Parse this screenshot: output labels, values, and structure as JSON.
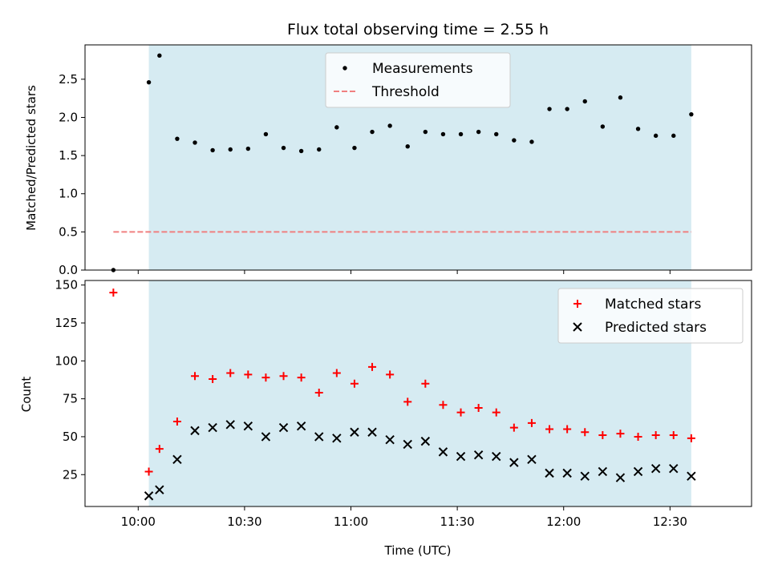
{
  "figure": {
    "title": "Flux total observing time = 2.55 h"
  },
  "colors": {
    "band": "#add8e6",
    "threshold": "#f08080",
    "matched": "#ff0000",
    "predicted": "#000000",
    "measurement": "#000000"
  },
  "chart_data": [
    {
      "type": "scatter",
      "ylabel": "Matched/Predicted stars",
      "xlabel": "",
      "ylim": [
        0,
        2.95
      ],
      "yticks": [
        0.0,
        0.5,
        1.0,
        1.5,
        2.0,
        2.5
      ],
      "ytick_labels": [
        "0.0",
        "0.5",
        "1.0",
        "1.5",
        "2.0",
        "2.5"
      ],
      "xlim": [
        "09:45",
        "12:53"
      ],
      "highlight_span": [
        "10:03",
        "12:36"
      ],
      "legend_position": "top-center",
      "series": [
        {
          "name": "Measurements",
          "marker": "dot",
          "x": [
            "09:53",
            "10:03",
            "10:06",
            "10:11",
            "10:16",
            "10:21",
            "10:26",
            "10:31",
            "10:36",
            "10:41",
            "10:46",
            "10:51",
            "10:56",
            "11:01",
            "11:06",
            "11:11",
            "11:16",
            "11:21",
            "11:26",
            "11:31",
            "11:36",
            "11:41",
            "11:46",
            "11:51",
            "11:56",
            "12:01",
            "12:06",
            "12:11",
            "12:16",
            "12:21",
            "12:26",
            "12:31",
            "12:36"
          ],
          "y": [
            0.0,
            2.46,
            2.81,
            1.72,
            1.67,
            1.57,
            1.58,
            1.59,
            1.78,
            1.6,
            1.56,
            1.58,
            1.87,
            1.6,
            1.81,
            1.89,
            1.62,
            1.81,
            1.78,
            1.78,
            1.81,
            1.78,
            1.7,
            1.68,
            2.11,
            2.11,
            2.21,
            1.88,
            2.26,
            1.85,
            1.76,
            1.76,
            2.04
          ]
        },
        {
          "name": "Threshold",
          "marker": "dashed-line",
          "x": [
            "09:53",
            "12:36"
          ],
          "y": [
            0.5,
            0.5
          ]
        }
      ]
    },
    {
      "type": "scatter",
      "ylabel": "Count",
      "xlabel": "Time (UTC)",
      "ylim": [
        4,
        153
      ],
      "yticks": [
        25,
        50,
        75,
        100,
        125,
        150
      ],
      "ytick_labels": [
        "25",
        "50",
        "75",
        "100",
        "125",
        "150"
      ],
      "xticks": [
        "10:00",
        "10:30",
        "11:00",
        "11:30",
        "12:00",
        "12:30"
      ],
      "xtick_labels": [
        "10:00",
        "10:30",
        "11:00",
        "11:30",
        "12:00",
        "12:30"
      ],
      "xlim": [
        "09:45",
        "12:53"
      ],
      "highlight_span": [
        "10:03",
        "12:36"
      ],
      "legend_position": "top-right",
      "series": [
        {
          "name": "Matched stars",
          "marker": "plus",
          "x": [
            "09:53",
            "10:03",
            "10:06",
            "10:11",
            "10:16",
            "10:21",
            "10:26",
            "10:31",
            "10:36",
            "10:41",
            "10:46",
            "10:51",
            "10:56",
            "11:01",
            "11:06",
            "11:11",
            "11:16",
            "11:21",
            "11:26",
            "11:31",
            "11:36",
            "11:41",
            "11:46",
            "11:51",
            "11:56",
            "12:01",
            "12:06",
            "12:11",
            "12:16",
            "12:21",
            "12:26",
            "12:31",
            "12:36"
          ],
          "y": [
            145,
            27,
            42,
            60,
            90,
            88,
            92,
            91,
            89,
            90,
            89,
            79,
            92,
            85,
            96,
            91,
            73,
            85,
            71,
            66,
            69,
            66,
            56,
            59,
            55,
            55,
            53,
            51,
            52,
            50,
            51,
            51,
            49
          ]
        },
        {
          "name": "Predicted stars",
          "marker": "x",
          "x": [
            "10:03",
            "10:06",
            "10:11",
            "10:16",
            "10:21",
            "10:26",
            "10:31",
            "10:36",
            "10:41",
            "10:46",
            "10:51",
            "10:56",
            "11:01",
            "11:06",
            "11:11",
            "11:16",
            "11:21",
            "11:26",
            "11:31",
            "11:36",
            "11:41",
            "11:46",
            "11:51",
            "11:56",
            "12:01",
            "12:06",
            "12:11",
            "12:16",
            "12:21",
            "12:26",
            "12:31",
            "12:36"
          ],
          "y": [
            11,
            15,
            35,
            54,
            56,
            58,
            57,
            50,
            56,
            57,
            50,
            49,
            53,
            53,
            48,
            45,
            47,
            40,
            37,
            38,
            37,
            33,
            35,
            26,
            26,
            24,
            27,
            23,
            27,
            29,
            29,
            24
          ]
        }
      ]
    }
  ]
}
